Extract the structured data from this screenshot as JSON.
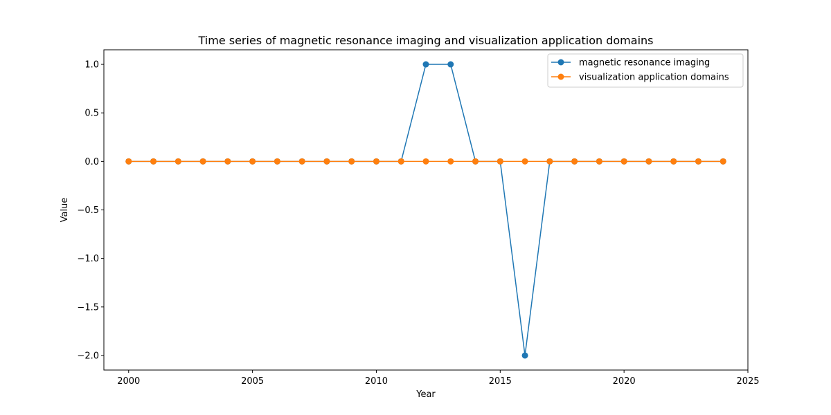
{
  "chart_data": {
    "type": "line",
    "title": "Time series of magnetic resonance imaging and visualization application domains",
    "xlabel": "Year",
    "ylabel": "Value",
    "xlim": [
      1999,
      2025
    ],
    "ylim": [
      -2.15,
      1.15
    ],
    "x_ticks": [
      2000,
      2005,
      2010,
      2015,
      2020,
      2025
    ],
    "y_ticks": [
      1.0,
      0.5,
      0.0,
      -0.5,
      -1.0,
      -1.5,
      -2.0
    ],
    "y_tick_labels": [
      "1.0",
      "0.5",
      "0.0",
      "−0.5",
      "−1.0",
      "−1.5",
      "−2.0"
    ],
    "x": [
      2000,
      2001,
      2002,
      2003,
      2004,
      2005,
      2006,
      2007,
      2008,
      2009,
      2010,
      2011,
      2012,
      2013,
      2014,
      2015,
      2016,
      2017,
      2018,
      2019,
      2020,
      2021,
      2022,
      2023,
      2024
    ],
    "series": [
      {
        "name": "magnetic resonance imaging",
        "color": "#1f77b4",
        "marker": "circle",
        "values": [
          0,
          0,
          0,
          0,
          0,
          0,
          0,
          0,
          0,
          0,
          0,
          0,
          1,
          1,
          0,
          0,
          -2,
          0,
          0,
          0,
          0,
          0,
          0,
          0,
          0
        ]
      },
      {
        "name": "visualization application domains",
        "color": "#ff7f0e",
        "marker": "circle",
        "values": [
          0,
          0,
          0,
          0,
          0,
          0,
          0,
          0,
          0,
          0,
          0,
          0,
          0,
          0,
          0,
          0,
          0,
          0,
          0,
          0,
          0,
          0,
          0,
          0,
          0
        ]
      }
    ],
    "grid": false,
    "legend_position": "top-right"
  }
}
